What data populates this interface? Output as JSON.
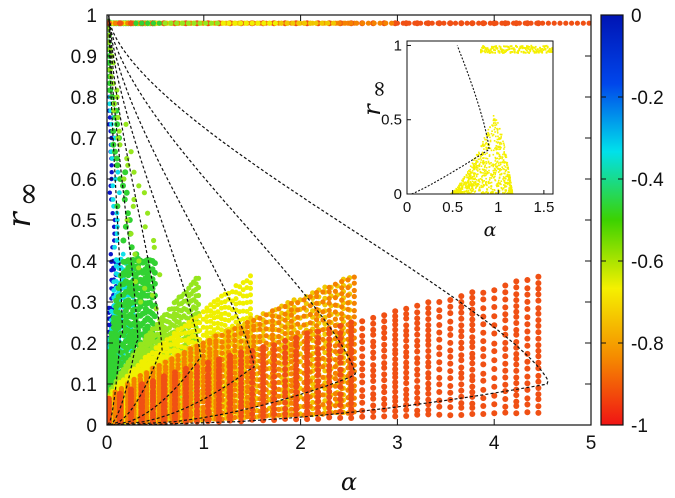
{
  "chart_data": [
    {
      "type": "scatter",
      "title": "",
      "xlabel": "α",
      "ylabel_main": "r",
      "ylabel_sub": "∞",
      "xlim": [
        0,
        5
      ],
      "ylim": [
        0,
        1
      ],
      "xticks": [
        "0",
        "1",
        "2",
        "3",
        "4",
        "5"
      ],
      "yticks": [
        "0",
        "0.1",
        "0.2",
        "0.3",
        "0.4",
        "0.5",
        "0.6",
        "0.7",
        "0.8",
        "0.9",
        "1"
      ],
      "grid": false,
      "colorbar": {
        "range": [
          -1,
          0
        ],
        "ticks": [
          "0",
          "-0.2",
          "-0.4",
          "-0.6",
          "-0.8",
          "-1"
        ],
        "colormap": [
          "#f01414",
          "#f58c00",
          "#f5f000",
          "#3cd200",
          "#00e1eb",
          "#0046eb",
          "#0014b4"
        ]
      },
      "series": [
        {
          "color_value": 0,
          "color": "#0a14c8",
          "alpha_max": 0.12,
          "point_size": 2.2
        },
        {
          "color_value": -0.2,
          "color": "#10e0e8",
          "alpha_max": 0.28,
          "point_size": 2.4
        },
        {
          "color_value": -0.4,
          "color": "#32d232",
          "alpha_max": 0.52,
          "point_size": 3.0
        },
        {
          "color_value": -0.5,
          "color": "#96e61e",
          "alpha_max": 0.95,
          "point_size": 2.6
        },
        {
          "color_value": -0.6,
          "color": "#f0f000",
          "alpha_max": 1.5,
          "point_size": 2.5
        },
        {
          "color_value": -0.7,
          "color": "#f0c800",
          "alpha_max": 2.55,
          "point_size": 2.6
        },
        {
          "color_value": -0.8,
          "color": "#f58200",
          "alpha_max": 2.6,
          "point_size": 2.6
        },
        {
          "color_value": -0.95,
          "color": "#f05014",
          "alpha_max": 4.55,
          "point_size": 3.0
        }
      ],
      "theory_curves": [
        {
          "alpha_max": 0.14,
          "r_turn": 0.22
        },
        {
          "alpha_max": 0.3,
          "r_turn": 0.2
        },
        {
          "alpha_max": 0.55,
          "r_turn": 0.18
        },
        {
          "alpha_max": 0.95,
          "r_turn": 0.16
        },
        {
          "alpha_max": 1.5,
          "r_turn": 0.14
        },
        {
          "alpha_max": 2.55,
          "r_turn": 0.12
        },
        {
          "alpha_max": 4.55,
          "r_turn": 0.1
        }
      ]
    },
    {
      "type": "scatter",
      "title": "",
      "inset": true,
      "xlabel": "α",
      "ylabel_main": "r",
      "ylabel_sub": "∞",
      "xlim": [
        0,
        1.6
      ],
      "ylim": [
        0,
        1.03
      ],
      "xticks": [
        "0",
        "0.5",
        "1",
        "1.5"
      ],
      "yticks": [
        "0",
        "0.5",
        "1"
      ],
      "color": "#f5f000",
      "curve_color": "#111111"
    }
  ]
}
